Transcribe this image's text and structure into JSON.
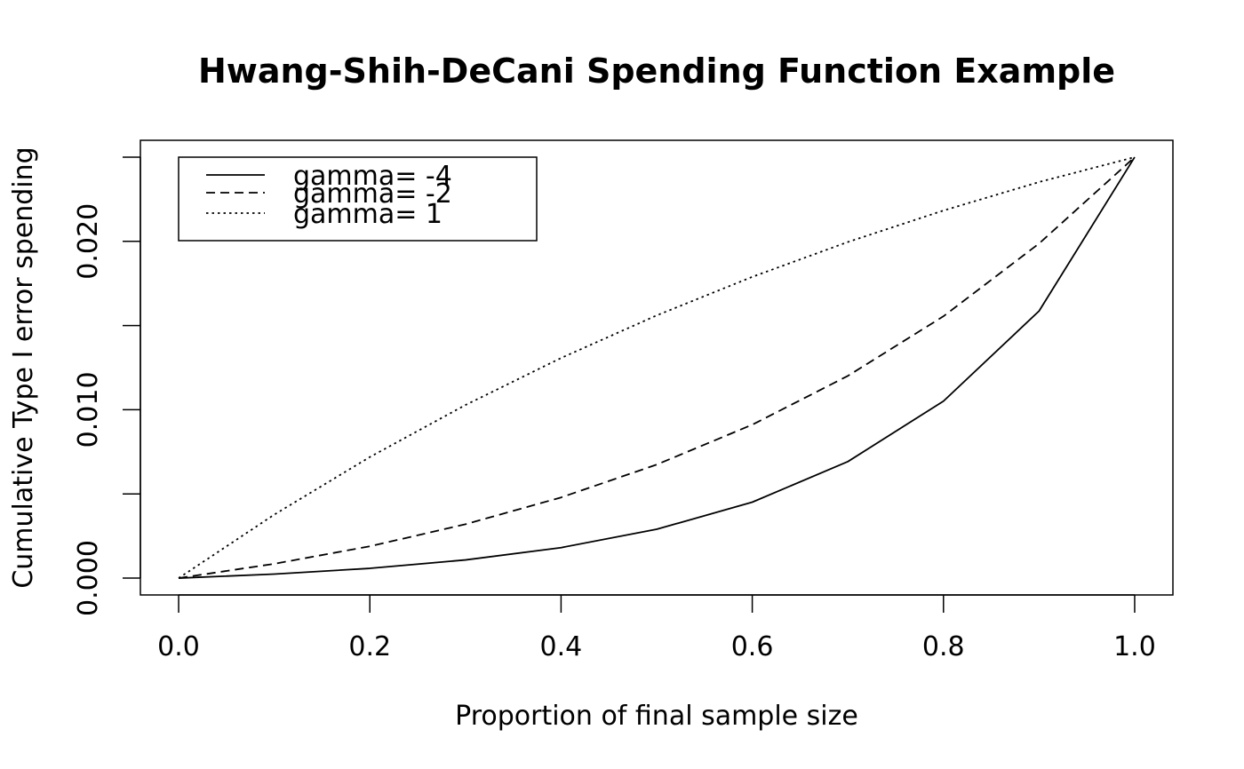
{
  "chart_data": {
    "type": "line",
    "title": "Hwang-Shih-DeCani Spending Function Example",
    "xlabel": "Proportion of final sample size",
    "ylabel": "Cumulative Type I error spending",
    "xlim": [
      -0.04,
      1.04
    ],
    "ylim": [
      -0.001,
      0.026
    ],
    "x_ticks": [
      0.0,
      0.2,
      0.4,
      0.6,
      0.8,
      1.0
    ],
    "x_tick_labels": [
      "0.0",
      "0.2",
      "0.4",
      "0.6",
      "0.8",
      "1.0"
    ],
    "y_ticks": [
      0.0,
      0.005,
      0.01,
      0.015,
      0.02,
      0.025
    ],
    "y_tick_labels": [
      "0.000",
      "",
      "0.010",
      "",
      "0.020",
      ""
    ],
    "grid": false,
    "legend_position": "top-left",
    "x": [
      0.0,
      0.1,
      0.2,
      0.3,
      0.4,
      0.5,
      0.6,
      0.7,
      0.8,
      0.9,
      1.0
    ],
    "series": [
      {
        "name": "gamma= -4",
        "line_style": "solid",
        "values": [
          0.0,
          0.00024,
          0.00058,
          0.00108,
          0.00181,
          0.0029,
          0.00451,
          0.00692,
          0.01051,
          0.01586,
          0.025
        ]
      },
      {
        "name": "gamma= -2",
        "line_style": "dashed",
        "values": [
          0.0,
          0.00085,
          0.00189,
          0.0032,
          0.00479,
          0.00674,
          0.00911,
          0.01201,
          0.01555,
          0.01987,
          0.025
        ]
      },
      {
        "name": "gamma= 1",
        "line_style": "dotted",
        "values": [
          0.0,
          0.00377,
          0.00719,
          0.01028,
          0.01307,
          0.0156,
          0.01789,
          0.01996,
          0.02183,
          0.02352,
          0.025
        ]
      }
    ],
    "colors": {
      "line": "#000000",
      "background": "#ffffff"
    }
  }
}
